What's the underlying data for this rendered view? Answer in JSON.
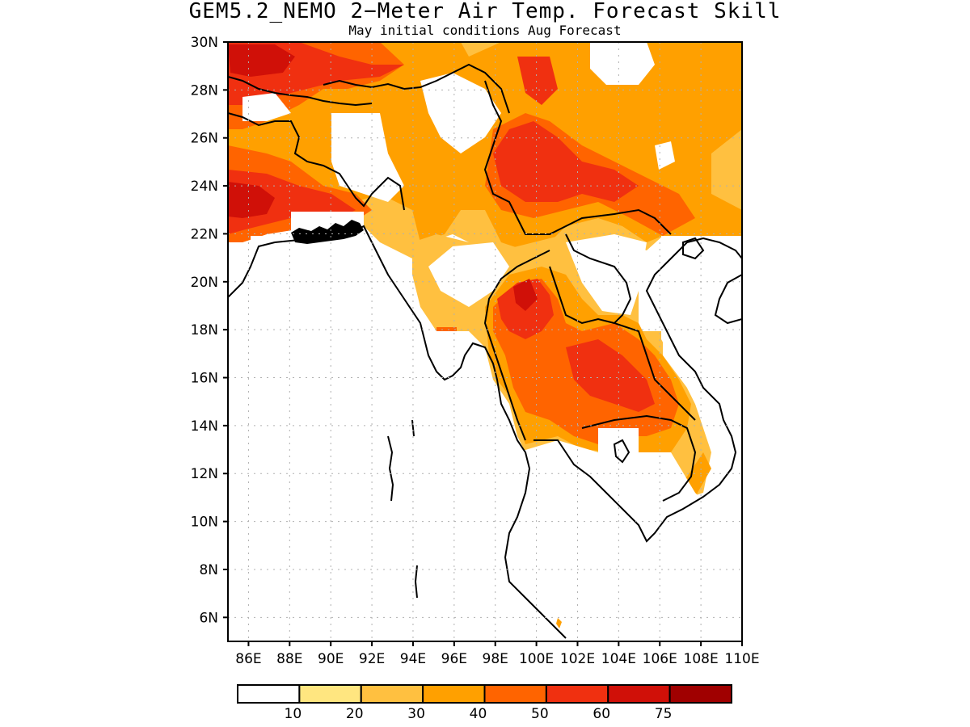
{
  "title": "GEM5.2_NEMO 2−Meter Air Temp. Forecast Skill",
  "subtitle": "May initial conditions  Aug Forecast",
  "lat_labels": [
    "30N",
    "28N",
    "26N",
    "24N",
    "22N",
    "20N",
    "18N",
    "16N",
    "14N",
    "12N",
    "10N",
    "8N",
    "6N"
  ],
  "lon_labels": [
    "86E",
    "88E",
    "90E",
    "92E",
    "94E",
    "96E",
    "98E",
    "100E",
    "102E",
    "104E",
    "106E",
    "108E",
    "110E"
  ],
  "colorbar": {
    "colors": [
      "#ffffff",
      "#ffe680",
      "#ffc040",
      "#ffa000",
      "#ff6400",
      "#f03010",
      "#d01008",
      "#a00000"
    ],
    "labels": [
      "10",
      "20",
      "30",
      "40",
      "50",
      "60",
      "75"
    ]
  },
  "map": {
    "lon_range": [
      85,
      110
    ],
    "lat_range": [
      5,
      30
    ],
    "grid": "dotted"
  }
}
